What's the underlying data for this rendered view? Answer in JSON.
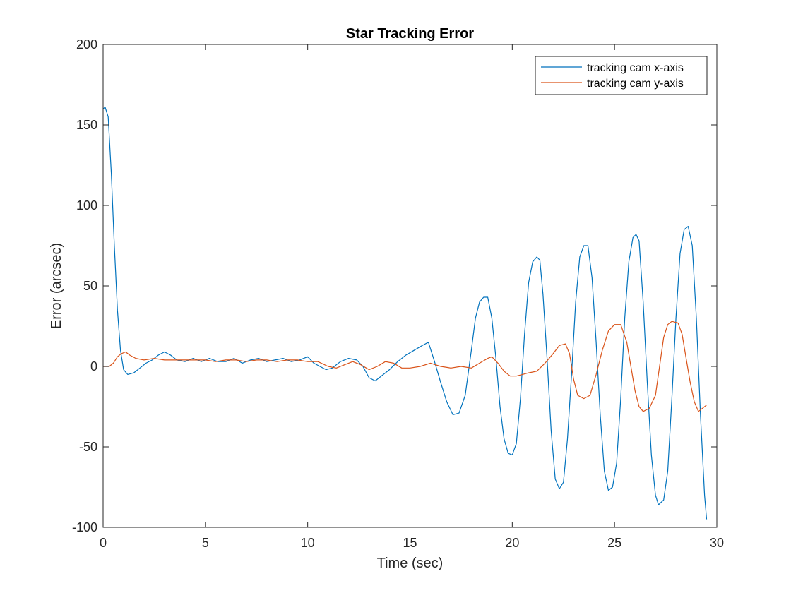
{
  "chart_data": {
    "type": "line",
    "title": "Star Tracking Error",
    "xlabel": "Time (sec)",
    "ylabel": "Error (arcsec)",
    "xlim": [
      0,
      30
    ],
    "ylim": [
      -100,
      200
    ],
    "xticks": [
      0,
      5,
      10,
      15,
      20,
      25,
      30
    ],
    "yticks": [
      -100,
      -50,
      0,
      50,
      100,
      150,
      200
    ],
    "xtick_labels": [
      "0",
      "5",
      "10",
      "15",
      "20",
      "25",
      "30"
    ],
    "ytick_labels": [
      "-100",
      "-50",
      "0",
      "50",
      "100",
      "150",
      "200"
    ],
    "grid": false,
    "legend_position": "top-right",
    "series": [
      {
        "name": "tracking cam x-axis",
        "color": "#0072BD",
        "points": [
          [
            0,
            160
          ],
          [
            0.1,
            161
          ],
          [
            0.25,
            155
          ],
          [
            0.4,
            120
          ],
          [
            0.55,
            75
          ],
          [
            0.7,
            35
          ],
          [
            0.85,
            10
          ],
          [
            1.0,
            -2
          ],
          [
            1.2,
            -5
          ],
          [
            1.5,
            -4
          ],
          [
            1.8,
            -1
          ],
          [
            2.1,
            2
          ],
          [
            2.4,
            4
          ],
          [
            2.7,
            7
          ],
          [
            3.0,
            9
          ],
          [
            3.3,
            7
          ],
          [
            3.6,
            4
          ],
          [
            4.0,
            3
          ],
          [
            4.4,
            5
          ],
          [
            4.8,
            3
          ],
          [
            5.2,
            5
          ],
          [
            5.6,
            3
          ],
          [
            6.0,
            3
          ],
          [
            6.4,
            5
          ],
          [
            6.8,
            2
          ],
          [
            7.2,
            4
          ],
          [
            7.6,
            5
          ],
          [
            8.0,
            3
          ],
          [
            8.4,
            4
          ],
          [
            8.8,
            5
          ],
          [
            9.2,
            3
          ],
          [
            9.6,
            4
          ],
          [
            10.0,
            6
          ],
          [
            10.3,
            2
          ],
          [
            10.6,
            0
          ],
          [
            10.9,
            -2
          ],
          [
            11.2,
            -1
          ],
          [
            11.6,
            3
          ],
          [
            12.0,
            5
          ],
          [
            12.4,
            4
          ],
          [
            12.7,
            0
          ],
          [
            13.0,
            -7
          ],
          [
            13.3,
            -9
          ],
          [
            13.6,
            -6
          ],
          [
            14.0,
            -2
          ],
          [
            14.4,
            3
          ],
          [
            14.8,
            7
          ],
          [
            15.2,
            10
          ],
          [
            15.6,
            13
          ],
          [
            15.9,
            15
          ],
          [
            16.2,
            3
          ],
          [
            16.5,
            -10
          ],
          [
            16.8,
            -22
          ],
          [
            17.1,
            -30
          ],
          [
            17.4,
            -29
          ],
          [
            17.7,
            -18
          ],
          [
            18.0,
            10
          ],
          [
            18.2,
            30
          ],
          [
            18.4,
            40
          ],
          [
            18.6,
            43
          ],
          [
            18.8,
            43
          ],
          [
            19.0,
            30
          ],
          [
            19.2,
            5
          ],
          [
            19.4,
            -25
          ],
          [
            19.6,
            -45
          ],
          [
            19.8,
            -54
          ],
          [
            20.0,
            -55
          ],
          [
            20.2,
            -48
          ],
          [
            20.4,
            -20
          ],
          [
            20.6,
            20
          ],
          [
            20.8,
            52
          ],
          [
            21.0,
            65
          ],
          [
            21.2,
            68
          ],
          [
            21.35,
            66
          ],
          [
            21.5,
            45
          ],
          [
            21.7,
            5
          ],
          [
            21.9,
            -40
          ],
          [
            22.1,
            -70
          ],
          [
            22.3,
            -76
          ],
          [
            22.5,
            -72
          ],
          [
            22.7,
            -45
          ],
          [
            22.9,
            -5
          ],
          [
            23.1,
            40
          ],
          [
            23.3,
            68
          ],
          [
            23.5,
            75
          ],
          [
            23.7,
            75
          ],
          [
            23.9,
            55
          ],
          [
            24.1,
            15
          ],
          [
            24.3,
            -30
          ],
          [
            24.5,
            -65
          ],
          [
            24.7,
            -77
          ],
          [
            24.9,
            -75
          ],
          [
            25.1,
            -60
          ],
          [
            25.3,
            -20
          ],
          [
            25.5,
            30
          ],
          [
            25.7,
            65
          ],
          [
            25.9,
            80
          ],
          [
            26.05,
            82
          ],
          [
            26.2,
            78
          ],
          [
            26.4,
            40
          ],
          [
            26.6,
            -10
          ],
          [
            26.8,
            -55
          ],
          [
            27.0,
            -80
          ],
          [
            27.15,
            -86
          ],
          [
            27.4,
            -83
          ],
          [
            27.6,
            -65
          ],
          [
            27.8,
            -20
          ],
          [
            28.0,
            30
          ],
          [
            28.2,
            70
          ],
          [
            28.4,
            85
          ],
          [
            28.6,
            87
          ],
          [
            28.8,
            75
          ],
          [
            29.0,
            30
          ],
          [
            29.2,
            -30
          ],
          [
            29.4,
            -80
          ],
          [
            29.5,
            -95
          ]
        ]
      },
      {
        "name": "tracking cam y-axis",
        "color": "#D95319",
        "points": [
          [
            0,
            0
          ],
          [
            0.3,
            0
          ],
          [
            0.5,
            2
          ],
          [
            0.7,
            6
          ],
          [
            0.9,
            8
          ],
          [
            1.1,
            9
          ],
          [
            1.3,
            7
          ],
          [
            1.6,
            5
          ],
          [
            2.0,
            4
          ],
          [
            2.5,
            5
          ],
          [
            3.0,
            4
          ],
          [
            3.5,
            4
          ],
          [
            4.0,
            4
          ],
          [
            4.5,
            4
          ],
          [
            5.0,
            4
          ],
          [
            5.5,
            3
          ],
          [
            6.0,
            4
          ],
          [
            6.5,
            4
          ],
          [
            7.0,
            3
          ],
          [
            7.5,
            4
          ],
          [
            8.0,
            4
          ],
          [
            8.5,
            3
          ],
          [
            9.0,
            4
          ],
          [
            9.5,
            4
          ],
          [
            10.0,
            3
          ],
          [
            10.5,
            3
          ],
          [
            11.0,
            0
          ],
          [
            11.4,
            -1
          ],
          [
            11.8,
            1
          ],
          [
            12.2,
            3
          ],
          [
            12.6,
            1
          ],
          [
            13.0,
            -2
          ],
          [
            13.4,
            0
          ],
          [
            13.8,
            3
          ],
          [
            14.2,
            2
          ],
          [
            14.6,
            -1
          ],
          [
            15.0,
            -1
          ],
          [
            15.5,
            0
          ],
          [
            16.0,
            2
          ],
          [
            16.5,
            0
          ],
          [
            17.0,
            -1
          ],
          [
            17.5,
            0
          ],
          [
            18.0,
            -1
          ],
          [
            18.4,
            2
          ],
          [
            18.8,
            5
          ],
          [
            19.0,
            6
          ],
          [
            19.3,
            2
          ],
          [
            19.6,
            -3
          ],
          [
            19.9,
            -6
          ],
          [
            20.2,
            -6
          ],
          [
            20.5,
            -5
          ],
          [
            20.8,
            -4
          ],
          [
            21.2,
            -3
          ],
          [
            21.6,
            2
          ],
          [
            22.0,
            8
          ],
          [
            22.3,
            13
          ],
          [
            22.6,
            14
          ],
          [
            22.8,
            8
          ],
          [
            23.0,
            -8
          ],
          [
            23.2,
            -18
          ],
          [
            23.5,
            -20
          ],
          [
            23.8,
            -18
          ],
          [
            24.1,
            -5
          ],
          [
            24.4,
            10
          ],
          [
            24.7,
            22
          ],
          [
            25.0,
            26
          ],
          [
            25.3,
            26
          ],
          [
            25.6,
            15
          ],
          [
            25.8,
            0
          ],
          [
            26.0,
            -15
          ],
          [
            26.2,
            -25
          ],
          [
            26.4,
            -28
          ],
          [
            26.7,
            -26
          ],
          [
            27.0,
            -18
          ],
          [
            27.2,
            0
          ],
          [
            27.4,
            18
          ],
          [
            27.6,
            26
          ],
          [
            27.8,
            28
          ],
          [
            28.1,
            27
          ],
          [
            28.3,
            20
          ],
          [
            28.5,
            5
          ],
          [
            28.7,
            -10
          ],
          [
            28.9,
            -22
          ],
          [
            29.1,
            -28
          ],
          [
            29.3,
            -26
          ],
          [
            29.5,
            -24
          ]
        ]
      }
    ]
  }
}
